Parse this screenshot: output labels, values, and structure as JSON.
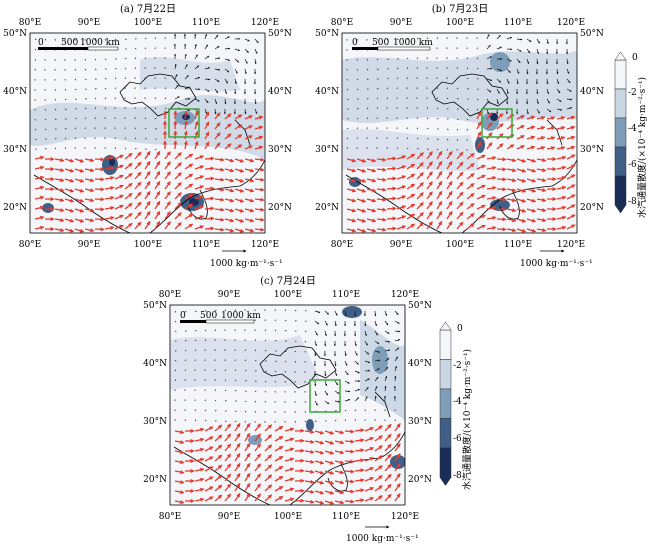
{
  "figure": {
    "panels": [
      {
        "id": "a",
        "title": "(a) 7月22日",
        "scale_bar": {
          "ticks": [
            "0",
            "500",
            "1000 km"
          ]
        },
        "ref_vector_label": "1000 kg·m⁻¹·s⁻¹"
      },
      {
        "id": "b",
        "title": "(b) 7月23日",
        "scale_bar": {
          "ticks": [
            "0",
            "500",
            "1000 km"
          ]
        },
        "ref_vector_label": "1000 kg·m⁻¹·s⁻¹"
      },
      {
        "id": "c",
        "title": "(c) 7月24日",
        "scale_bar": {
          "ticks": [
            "0",
            "500",
            "1000 km"
          ]
        },
        "ref_vector_label": "1000 kg·m⁻¹·s⁻¹"
      }
    ],
    "axes": {
      "lon_ticks": [
        "80°E",
        "90°E",
        "100°E",
        "110°E",
        "120°E"
      ],
      "lat_ticks": [
        "50°N",
        "40°N",
        "30°N",
        "20°N"
      ]
    },
    "colorbar": {
      "title": "水汽通量散度/(×10⁻⁴ kg·m⁻²·s⁻¹)",
      "tick_labels": [
        "0",
        "-2",
        "-4",
        "-6",
        "-8"
      ],
      "colors": [
        "#f4f6f9",
        "#c9d6e4",
        "#7d9db8",
        "#3f5f86",
        "#1a2c58"
      ]
    },
    "colors": {
      "strong_flux_vector": "#e63b2e",
      "weak_flux_vector": "#111111",
      "study_box": "#3aa83a",
      "boundary": "#000000"
    }
  }
}
